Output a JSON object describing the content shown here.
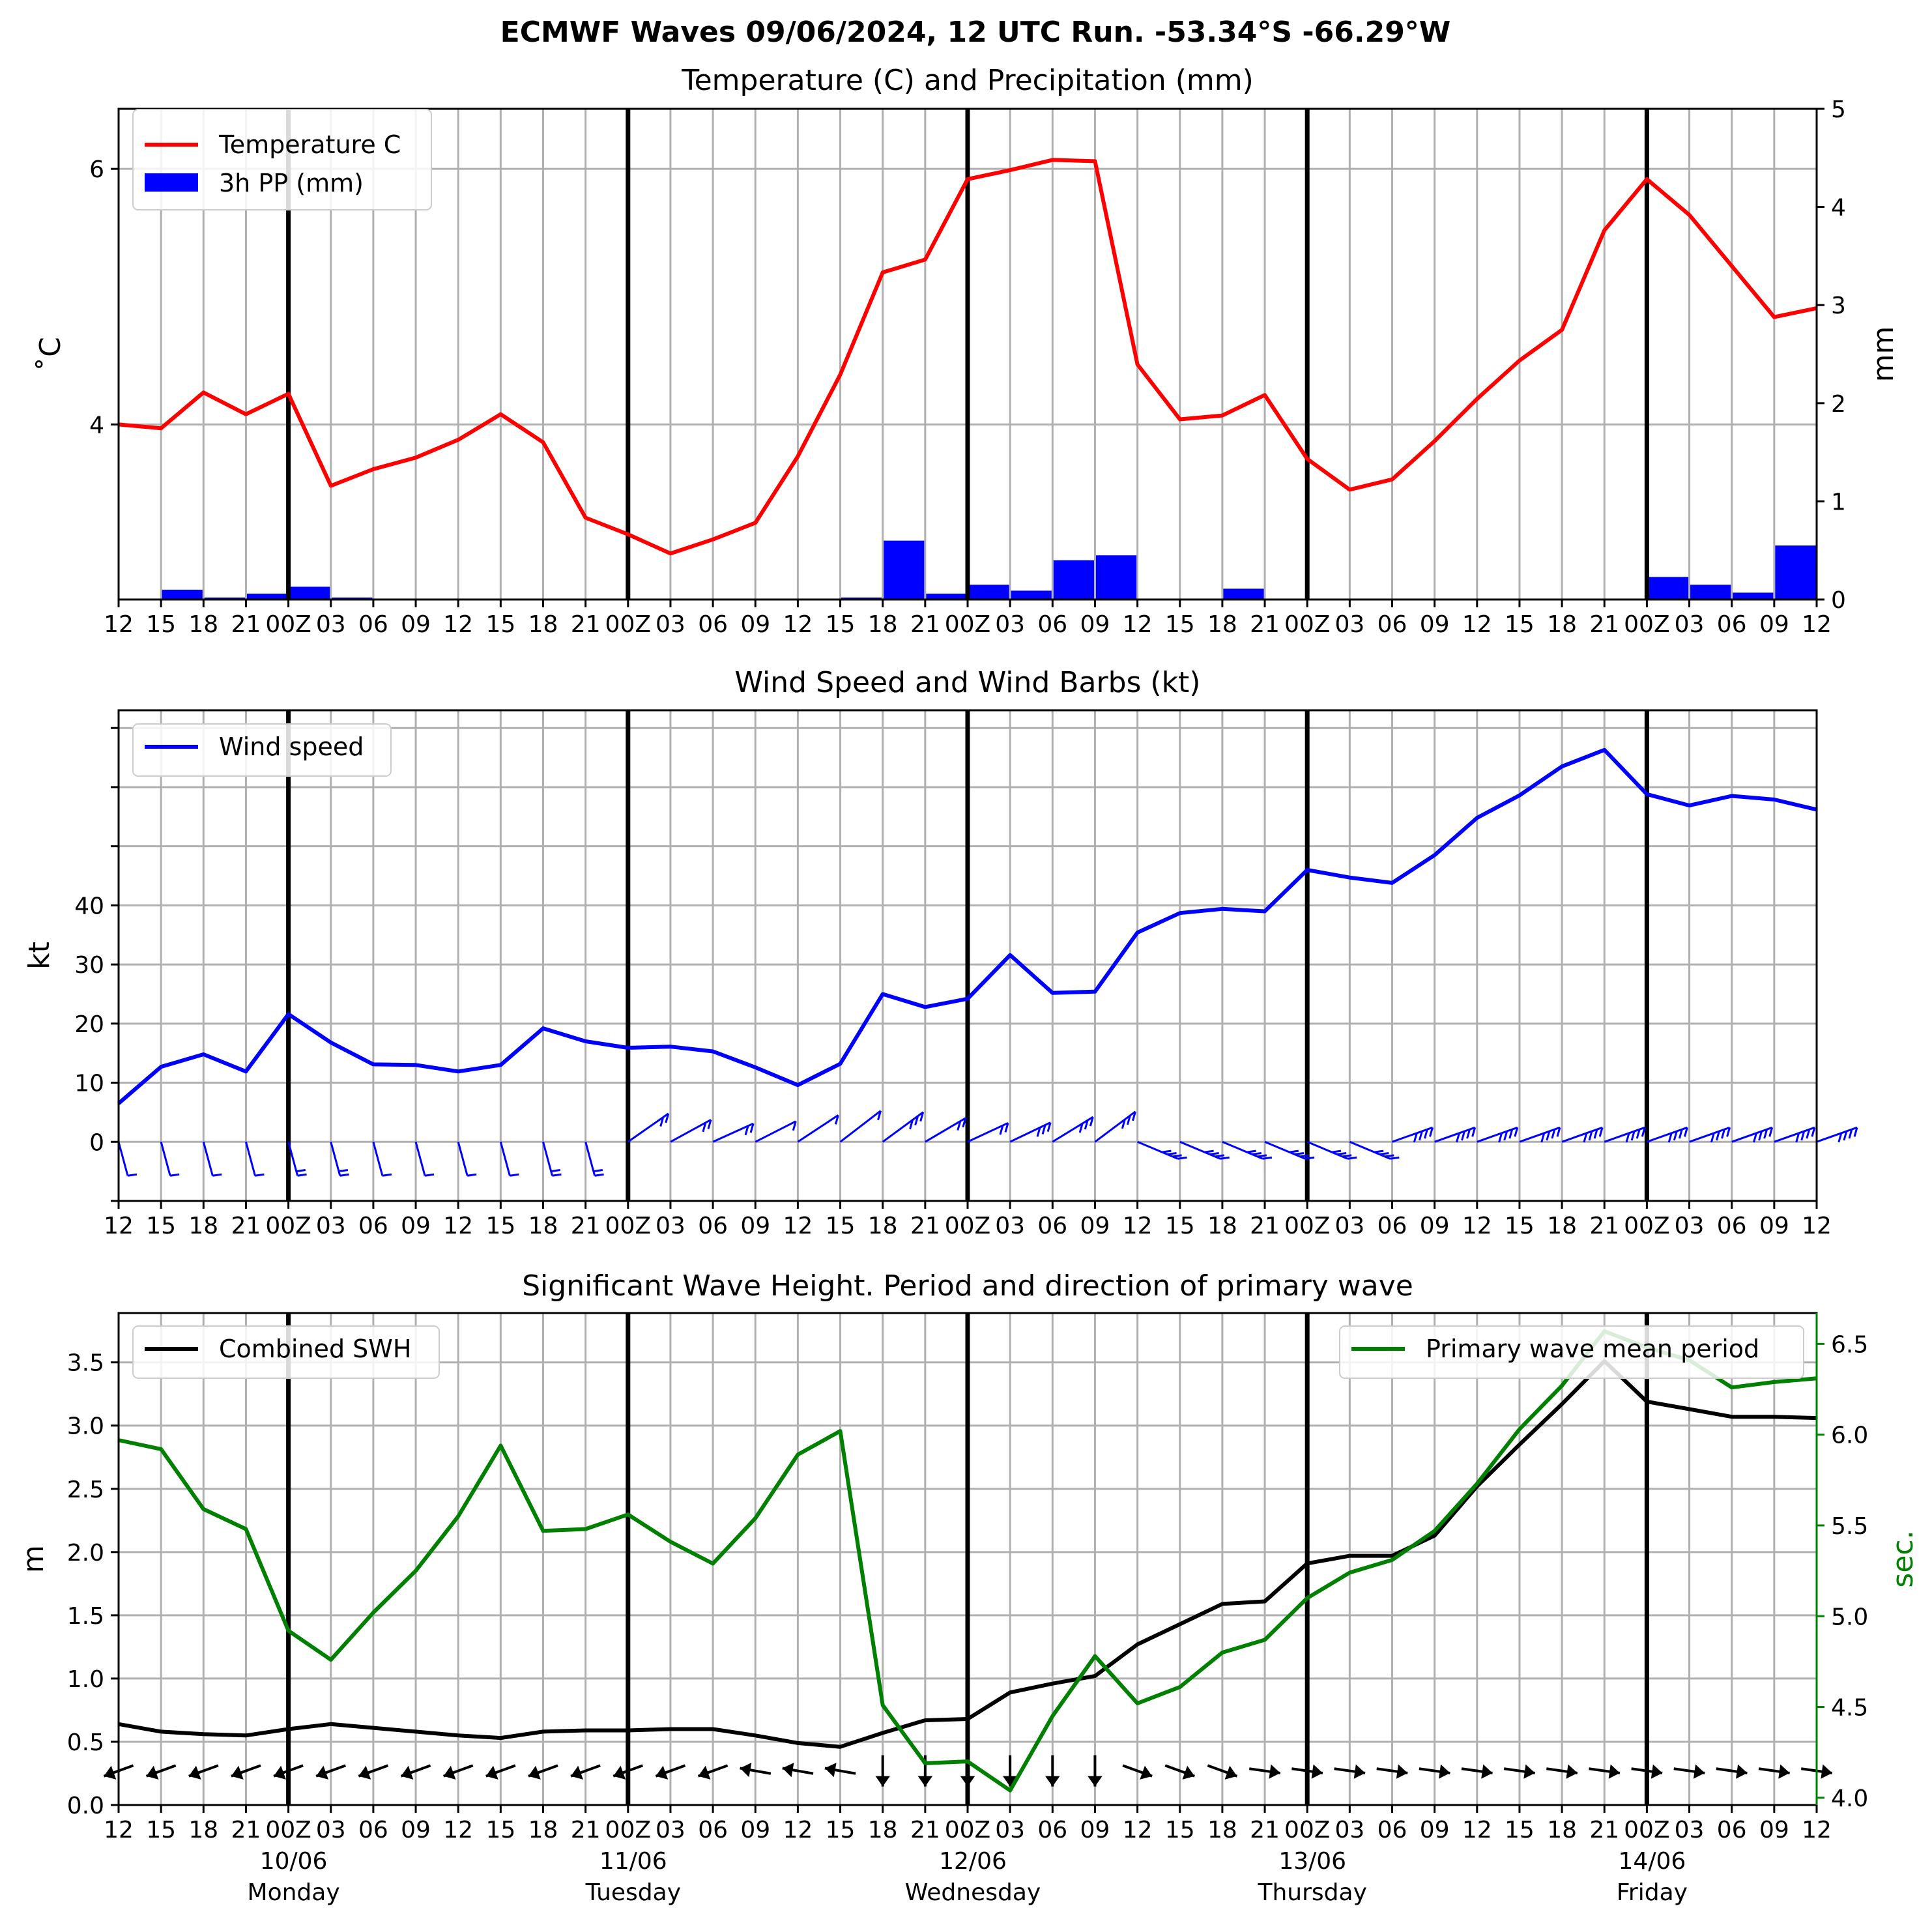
{
  "figure_title": "ECMWF Waves 09/06/2024, 12 UTC Run. -53.34°S -66.29°W",
  "time_axis": {
    "tick_labels": [
      "12",
      "15",
      "18",
      "21",
      "00Z",
      "03",
      "06",
      "09",
      "12",
      "15",
      "18",
      "21",
      "00Z",
      "03",
      "06",
      "09",
      "12",
      "15",
      "18",
      "21",
      "00Z",
      "03",
      "06",
      "09",
      "12",
      "15",
      "18",
      "21",
      "00Z",
      "03",
      "06",
      "09",
      "12",
      "15",
      "18",
      "21",
      "00Z",
      "03",
      "06",
      "09",
      "12"
    ],
    "tick_labels_bottom": [
      "12",
      "15",
      "18",
      "21",
      "00Z",
      "03",
      "06",
      "09",
      "12",
      "15",
      "18",
      "21",
      "00Z",
      "03",
      "06",
      "09",
      "12",
      "15",
      "18",
      "21",
      "00Z",
      "03",
      "06",
      "09",
      "12",
      "15",
      "18",
      "21",
      "00Z",
      "03",
      "06",
      "09",
      "12",
      "15",
      "18",
      "21",
      "00Z",
      "03",
      "06",
      "09",
      "12"
    ],
    "day_dates": [
      "10/06",
      "11/06",
      "12/06",
      "13/06",
      "14/06"
    ],
    "day_names": [
      "Monday",
      "Tuesday",
      "Wednesday",
      "Thursday",
      "Friday"
    ],
    "day_boundaries_index": [
      4,
      12,
      20,
      28,
      36
    ]
  },
  "chart_data": [
    {
      "type": "line",
      "title": "Temperature (C) and Precipitation (mm)",
      "ylabel": "˚C",
      "ylabel_right": "mm",
      "ylim": [
        2.63,
        6.47
      ],
      "ylim_right": [
        0,
        5
      ],
      "yticks": [
        "4",
        "6"
      ],
      "yticks_right": [
        "0",
        "1",
        "2",
        "3",
        "4",
        "5"
      ],
      "legend_position": "upper left",
      "series": [
        {
          "name": "Temperature C",
          "color": "#ff0000",
          "kind": "line",
          "values": [
            4.0,
            3.97,
            4.25,
            4.08,
            4.24,
            3.52,
            3.65,
            3.74,
            3.88,
            4.08,
            3.86,
            3.27,
            3.14,
            2.99,
            3.1,
            3.23,
            3.75,
            4.39,
            5.19,
            5.29,
            5.92,
            5.99,
            6.07,
            6.06,
            4.47,
            4.04,
            4.07,
            4.23,
            3.73,
            3.49,
            3.57,
            3.87,
            4.2,
            4.5,
            4.74,
            5.52,
            5.92,
            5.64,
            5.24,
            4.84,
            4.91
          ]
        },
        {
          "name": "3h PP (mm)",
          "color": "#0000ff",
          "kind": "bar",
          "axis": "right",
          "values": [
            0,
            0.1,
            0.02,
            0.06,
            0.13,
            0.02,
            0,
            0.01,
            0.01,
            0,
            0,
            0,
            0.01,
            0.01,
            0,
            0,
            0,
            0.02,
            0.6,
            0.06,
            0.15,
            0.09,
            0.4,
            0.45,
            0,
            0,
            0.11,
            0,
            0.01,
            0,
            0,
            0,
            0,
            0,
            0,
            0,
            0.23,
            0.15,
            0.07,
            0.55
          ]
        }
      ]
    },
    {
      "type": "line",
      "title": "Wind Speed and Wind Barbs (kt)",
      "ylabel": "kt",
      "ylim": [
        -10,
        73
      ],
      "yticks": [
        "0",
        "10",
        "20",
        "30",
        "40"
      ],
      "legend_position": "upper left",
      "series": [
        {
          "name": "Wind speed",
          "color": "#0000ff",
          "values": [
            6.5,
            12.7,
            14.8,
            11.9,
            21.6,
            16.8,
            13.1,
            13.0,
            11.9,
            13.0,
            19.2,
            17.0,
            15.9,
            16.1,
            15.3,
            12.6,
            9.6,
            13.2,
            25.0,
            22.8,
            24.2,
            31.6,
            25.2,
            25.4,
            35.4,
            38.7,
            39.4,
            39.0,
            46.0,
            44.7,
            43.8,
            48.5,
            54.8,
            58.6,
            63.5,
            66.3,
            58.8,
            56.9,
            58.5,
            57.9,
            56.2
          ]
        }
      ]
    },
    {
      "type": "line",
      "title": "Significant Wave Height. Period and direction of primary wave",
      "ylabel": "m",
      "ylabel_right": "sec.",
      "ylabel_right_color": "#008000",
      "ylim": [
        0,
        3.89
      ],
      "ylim_right": [
        3.96,
        6.67
      ],
      "yticks": [
        "0.0",
        "0.5",
        "1.0",
        "1.5",
        "2.0",
        "2.5",
        "3.0",
        "3.5"
      ],
      "yticks_right": [
        "4.0",
        "4.5",
        "5.0",
        "5.5",
        "6.0",
        "6.5"
      ],
      "series": [
        {
          "name": "Combined SWH",
          "color": "#000000",
          "legend_position": "upper left",
          "values": [
            0.64,
            0.58,
            0.56,
            0.55,
            0.6,
            0.64,
            0.61,
            0.58,
            0.55,
            0.53,
            0.58,
            0.59,
            0.59,
            0.6,
            0.6,
            0.55,
            0.49,
            0.46,
            0.57,
            0.67,
            0.68,
            0.89,
            0.96,
            1.02,
            1.27,
            1.43,
            1.59,
            1.61,
            1.91,
            1.97,
            1.97,
            2.13,
            2.52,
            2.85,
            3.17,
            3.51,
            3.19,
            3.13,
            3.07,
            3.07,
            3.06
          ]
        },
        {
          "name": "Primary wave mean period",
          "color": "#008000",
          "axis": "right",
          "legend_position": "upper right",
          "values": [
            5.97,
            5.92,
            5.59,
            5.48,
            4.92,
            4.76,
            5.02,
            5.25,
            5.55,
            5.94,
            5.47,
            5.48,
            5.56,
            5.41,
            5.29,
            5.54,
            5.89,
            6.02,
            4.51,
            4.19,
            4.2,
            4.04,
            4.45,
            4.78,
            4.52,
            4.61,
            4.8,
            4.87,
            5.1,
            5.24,
            5.31,
            5.47,
            5.73,
            6.03,
            6.27,
            6.57,
            6.48,
            6.41,
            6.26,
            6.29,
            6.31
          ]
        }
      ]
    }
  ]
}
